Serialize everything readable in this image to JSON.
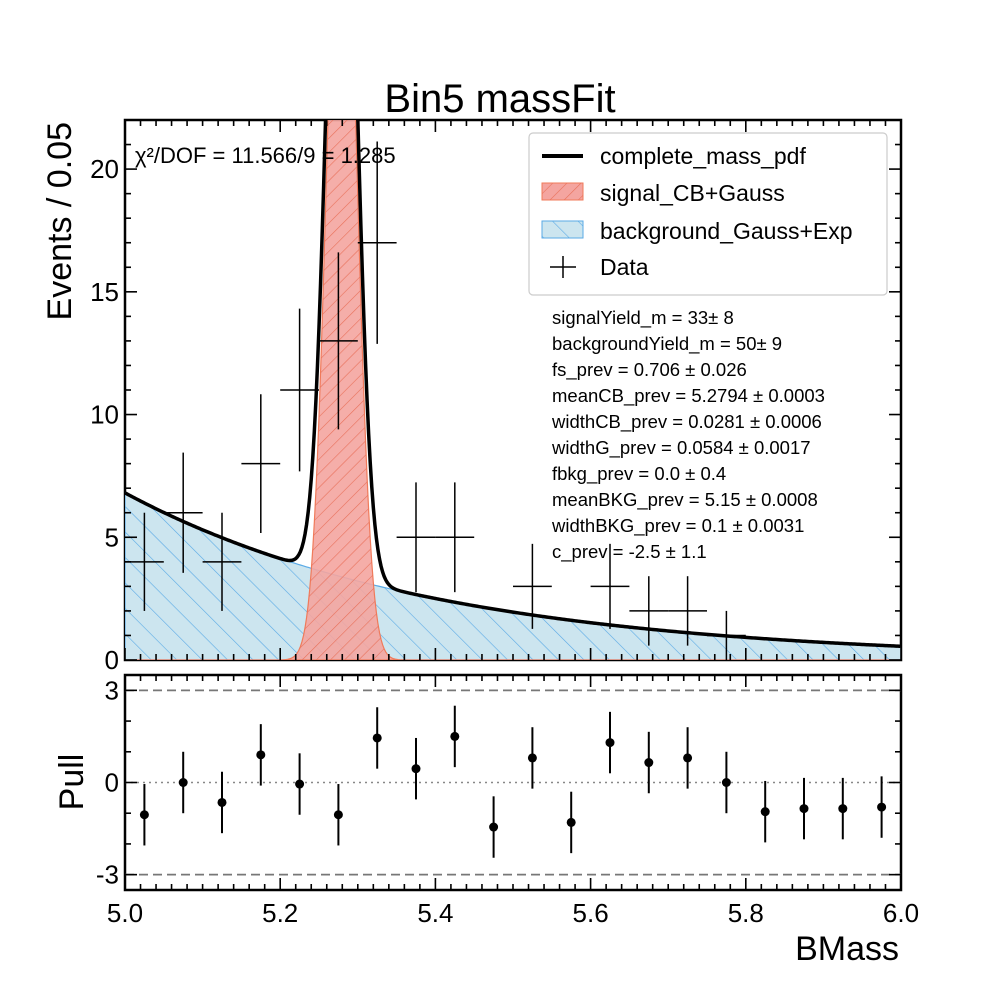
{
  "chart_data": [
    {
      "type": "line",
      "panel": "main",
      "title": "Bin5 massFit",
      "xlabel": "BMass",
      "ylabel": "Events / 0.05",
      "xlim": [
        5.0,
        6.0
      ],
      "ylim": [
        0,
        22
      ],
      "yticks": [
        0,
        5,
        10,
        15,
        20
      ],
      "chi2_label": "χ²/DOF = 11.566/9 = 1.285",
      "legend": {
        "position": "top-right",
        "entries": [
          "complete_mass_pdf",
          "signal_CB+Gauss",
          "background_Gauss+Exp",
          "Data"
        ]
      },
      "colors": {
        "total": "#000000",
        "signal_fill": "#f4a5a0",
        "signal_edge": "#f07a5a",
        "background_fill": "#cce5ef",
        "background_edge": "#5aaae6",
        "data": "#000000"
      },
      "signal_shape": {
        "mean": 5.2794,
        "sigma": 0.0185,
        "yield": 33
      },
      "background_shape": {
        "yield": 50,
        "c": -2.5
      },
      "series": [
        {
          "name": "Data",
          "x": [
            5.025,
            5.075,
            5.125,
            5.175,
            5.225,
            5.275,
            5.325,
            5.375,
            5.425,
            5.475,
            5.525,
            5.575,
            5.625,
            5.675,
            5.725,
            5.775,
            5.825,
            5.875,
            5.925,
            5.975
          ],
          "y": [
            4,
            6,
            4,
            8,
            11,
            13,
            17,
            5,
            5,
            0,
            3,
            0,
            3,
            2,
            2,
            1,
            0,
            0,
            0,
            0
          ],
          "xerr": 0.025
        }
      ],
      "fit_params": [
        "signalYield_m = 33± 8",
        "backgroundYield_m = 50± 9",
        "fs_prev = 0.706 ± 0.026",
        "meanCB_prev = 5.2794 ± 0.0003",
        "widthCB_prev = 0.0281 ± 0.0006",
        "widthG_prev = 0.0584 ± 0.0017",
        "fbkg_prev = 0.0 ± 0.4",
        "meanBKG_prev = 5.15 ± 0.0008",
        "widthBKG_prev = 0.1 ± 0.0031",
        "c_prev = -2.5 ± 1.1"
      ]
    },
    {
      "type": "scatter",
      "panel": "pull",
      "xlabel": "BMass",
      "ylabel": "Pull",
      "xlim": [
        5.0,
        6.0
      ],
      "ylim": [
        -3.5,
        3.5
      ],
      "yticks": [
        -3,
        0,
        3
      ],
      "xticks": [
        5.0,
        5.2,
        5.4,
        5.6,
        5.8,
        6.0
      ],
      "xtick_labels": [
        "5.0",
        "5.2",
        "5.4",
        "5.6",
        "5.8",
        "6.0"
      ],
      "reference_lines": [
        3,
        0,
        -3
      ],
      "series": [
        {
          "name": "Pull",
          "x": [
            5.025,
            5.075,
            5.125,
            5.175,
            5.225,
            5.275,
            5.325,
            5.375,
            5.425,
            5.475,
            5.525,
            5.575,
            5.625,
            5.675,
            5.725,
            5.775,
            5.825,
            5.875,
            5.925,
            5.975
          ],
          "y": [
            -1.05,
            0.0,
            -0.65,
            0.9,
            -0.05,
            -1.05,
            1.45,
            0.45,
            1.5,
            -1.45,
            0.8,
            -1.3,
            1.3,
            0.65,
            0.8,
            0.0,
            -0.95,
            -0.85,
            -0.85,
            -0.8
          ],
          "yerr": 1.0
        }
      ]
    }
  ]
}
